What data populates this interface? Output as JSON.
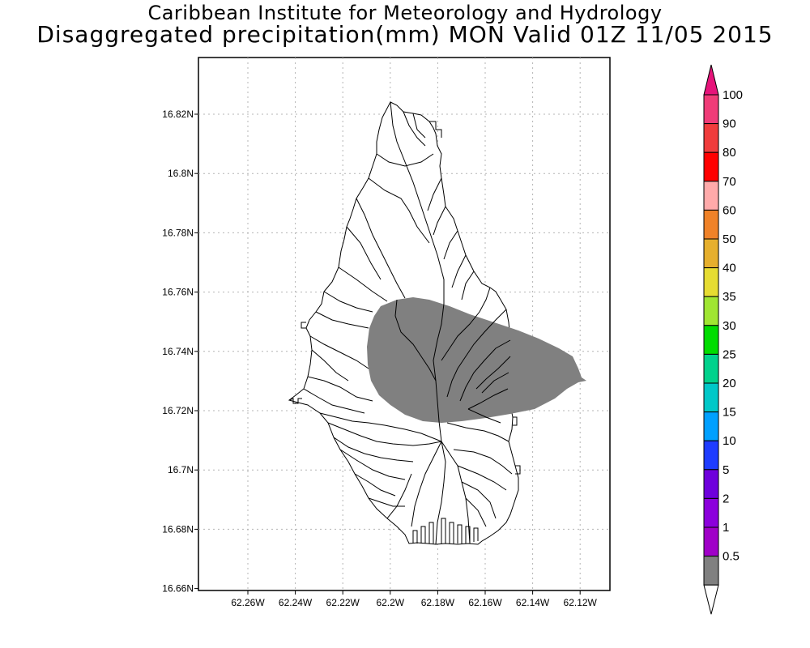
{
  "header": {
    "title": "Caribbean Institute for Meteorology and Hydrology",
    "subtitle": "Disaggregated precipitation(mm) MON Valid 01Z 11/05 2015"
  },
  "map": {
    "lat_labels": [
      "16.82N",
      "16.8N",
      "16.78N",
      "16.76N",
      "16.74N",
      "16.72N",
      "16.7N",
      "16.68N",
      "16.66N"
    ],
    "lon_labels": [
      "62.26W",
      "62.24W",
      "62.22W",
      "62.2W",
      "62.18W",
      "62.16W",
      "62.14W",
      "62.12W"
    ],
    "grid": true,
    "land_fill": "#ffffff",
    "precip_fill": "#808080"
  },
  "colorbar": {
    "labels": [
      "100",
      "90",
      "80",
      "70",
      "60",
      "50",
      "40",
      "35",
      "30",
      "25",
      "20",
      "15",
      "10",
      "5",
      "2",
      "1",
      "0.5"
    ],
    "colors": [
      "#f03c78",
      "#f03c3c",
      "#ff0000",
      "#ffaaaa",
      "#f08228",
      "#e6af2d",
      "#e6dc32",
      "#a0e632",
      "#00dc00",
      "#00d28c",
      "#00c8c8",
      "#00a0ff",
      "#1e3cff",
      "#6e00dc",
      "#8c00dc",
      "#a000c8",
      "#808080"
    ],
    "top_arrow_color": "#e6147a",
    "bottom_arrow_color": "#ffffff"
  }
}
